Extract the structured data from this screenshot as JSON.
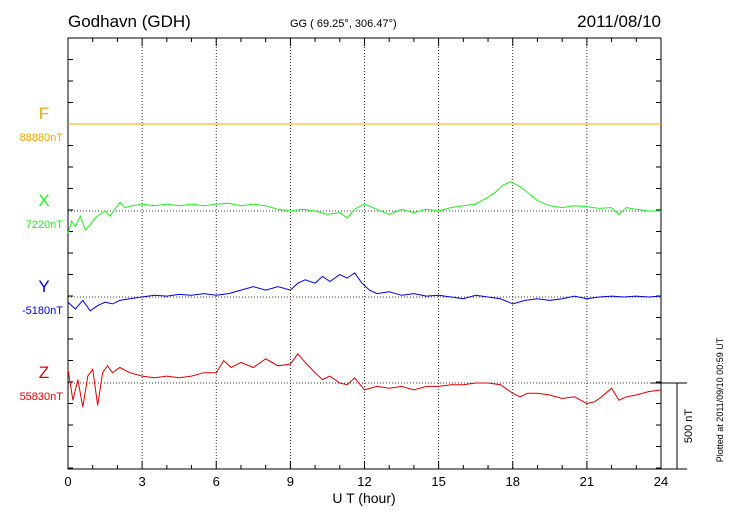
{
  "header": {
    "station": "Godhavn (GDH)",
    "coords": "GG ( 69.25°, 306.47°)",
    "date": "2011/08/10"
  },
  "side_note": "Plotted at 2011/09/10 00:59 UT",
  "colors": {
    "F": "#f0a800",
    "X": "#22ee22",
    "Y": "#0000e0",
    "Z": "#e00000",
    "axis": "#000000"
  },
  "chart_data": {
    "type": "line",
    "title": "Godhavn (GDH)",
    "xlabel": "U T (hour)",
    "ylabel": "",
    "xlim": [
      0,
      24
    ],
    "xticks": [
      0,
      3,
      6,
      9,
      12,
      15,
      18,
      21,
      24
    ],
    "grid": true,
    "units": "nT",
    "scale_bar": {
      "label": "500 nT",
      "value": 500
    },
    "series": [
      {
        "name": "F",
        "color": "#f0a800",
        "baseline_label": "88880nT",
        "baseline": 88880,
        "x": [
          0,
          24
        ],
        "values": [
          0,
          0
        ]
      },
      {
        "name": "X",
        "color": "#22ee22",
        "baseline_label": "7220nT",
        "baseline": 7220,
        "x": [
          0,
          0.15,
          0.3,
          0.5,
          0.7,
          0.9,
          1.1,
          1.3,
          1.5,
          1.7,
          1.9,
          2.1,
          2.3,
          2.6,
          3.0,
          3.5,
          4.0,
          4.5,
          5.0,
          5.5,
          6.0,
          6.5,
          7.0,
          7.5,
          8.0,
          8.5,
          9.0,
          9.5,
          10.0,
          10.5,
          11.0,
          11.3,
          11.6,
          12.0,
          12.5,
          13.0,
          13.5,
          14.0,
          14.5,
          15.0,
          15.5,
          16.0,
          16.5,
          17.0,
          17.3,
          17.6,
          17.9,
          18.2,
          18.5,
          19.0,
          19.5,
          20.0,
          20.5,
          21.0,
          21.5,
          22.0,
          22.3,
          22.6,
          23.0,
          23.5,
          24.0
        ],
        "values": [
          -130,
          -60,
          -90,
          -30,
          -110,
          -80,
          -40,
          -20,
          0,
          -30,
          10,
          50,
          20,
          30,
          40,
          30,
          40,
          30,
          40,
          30,
          40,
          45,
          30,
          40,
          30,
          10,
          0,
          10,
          0,
          -20,
          -10,
          -40,
          10,
          40,
          10,
          -20,
          10,
          -10,
          10,
          0,
          20,
          30,
          40,
          80,
          110,
          150,
          170,
          150,
          120,
          60,
          30,
          20,
          30,
          25,
          15,
          20,
          -20,
          20,
          10,
          0,
          0
        ]
      },
      {
        "name": "Y",
        "color": "#0000e0",
        "baseline_label": "-5180nT",
        "baseline": -5180,
        "x": [
          0,
          0.3,
          0.6,
          0.9,
          1.2,
          1.5,
          1.8,
          2.1,
          2.5,
          3.0,
          3.5,
          4.0,
          4.5,
          5.0,
          5.5,
          6.0,
          6.5,
          7.0,
          7.5,
          8.0,
          8.5,
          9.0,
          9.3,
          9.6,
          10.0,
          10.3,
          10.6,
          11.0,
          11.3,
          11.6,
          11.9,
          12.2,
          12.5,
          13.0,
          13.5,
          14.0,
          14.5,
          15.0,
          15.5,
          16.0,
          16.5,
          17.0,
          17.5,
          18.0,
          18.5,
          19.0,
          19.5,
          20.0,
          20.5,
          21.0,
          21.5,
          22.0,
          22.5,
          23.0,
          23.5,
          24.0
        ],
        "values": [
          -30,
          -70,
          -20,
          -80,
          -50,
          -30,
          -40,
          -20,
          -10,
          0,
          10,
          5,
          15,
          10,
          20,
          10,
          20,
          40,
          60,
          40,
          60,
          40,
          80,
          100,
          80,
          120,
          90,
          130,
          110,
          140,
          80,
          40,
          20,
          30,
          10,
          20,
          5,
          10,
          0,
          -10,
          10,
          0,
          -10,
          -40,
          -20,
          -10,
          -20,
          -10,
          5,
          -10,
          0,
          5,
          0,
          5,
          0,
          5
        ]
      },
      {
        "name": "Z",
        "color": "#e00000",
        "baseline_label": "55830nT",
        "baseline": 55830,
        "x": [
          0,
          0.2,
          0.4,
          0.6,
          0.8,
          1.0,
          1.2,
          1.4,
          1.6,
          1.8,
          2.1,
          2.5,
          3.0,
          3.5,
          4.0,
          4.5,
          5.0,
          5.5,
          6.0,
          6.3,
          6.6,
          7.0,
          7.5,
          8.0,
          8.5,
          9.0,
          9.3,
          9.6,
          10.0,
          10.3,
          10.6,
          11.0,
          11.3,
          11.6,
          12.0,
          12.5,
          13.0,
          13.5,
          14.0,
          14.5,
          15.0,
          15.5,
          16.0,
          16.5,
          17.0,
          17.5,
          18.0,
          18.3,
          18.6,
          19.0,
          19.5,
          20.0,
          20.5,
          21.0,
          21.3,
          21.6,
          22.0,
          22.3,
          22.6,
          23.0,
          23.5,
          24.0
        ],
        "values": [
          80,
          -100,
          20,
          -140,
          40,
          80,
          -130,
          60,
          100,
          60,
          90,
          60,
          40,
          30,
          40,
          30,
          40,
          60,
          60,
          130,
          90,
          120,
          90,
          140,
          100,
          110,
          170,
          120,
          60,
          20,
          40,
          0,
          -10,
          30,
          -40,
          -20,
          -30,
          -20,
          -40,
          -20,
          -20,
          -10,
          -10,
          0,
          0,
          -10,
          -60,
          -80,
          -60,
          -60,
          -70,
          -90,
          -80,
          -120,
          -110,
          -80,
          -30,
          -100,
          -80,
          -70,
          -50,
          -40
        ]
      }
    ]
  }
}
